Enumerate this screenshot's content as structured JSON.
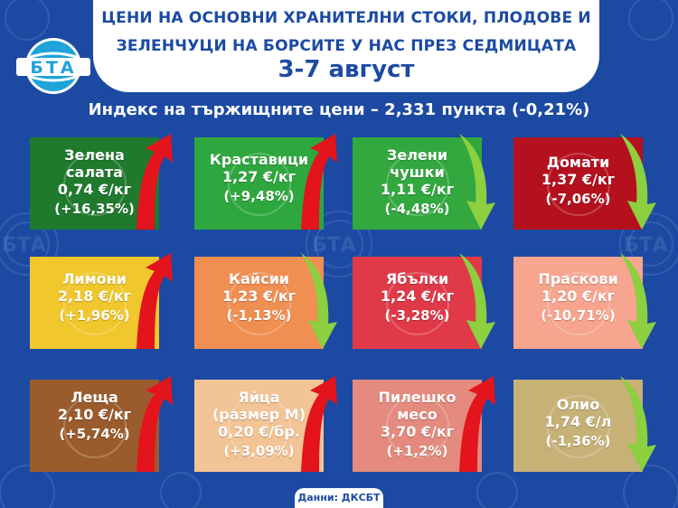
{
  "header": {
    "line1": "ЦЕНИ НА ОСНОВНИ ХРАНИТЕЛНИ СТОКИ, ПЛОДОВЕ И",
    "line2": "ЗЕЛЕНЧУЦИ НА БОРСИТЕ У НАС ПРЕЗ СЕДМИЦАТА",
    "date": "3-7 август"
  },
  "logo": {
    "text": "БТА"
  },
  "index_line": "Индекс на тържищните цени – 2,331 пункта (-0,21%)",
  "products": [
    {
      "name": "Зелена\nсалата",
      "price": "0,74 €/кг",
      "change": "(+16,35%)",
      "direction": "up",
      "color": "#1f7a2e",
      "icon": "lettuce-icon"
    },
    {
      "name": "Краставици",
      "price": "1,27 €/кг",
      "change": "(+9,48%)",
      "direction": "up",
      "color": "#2ea83e",
      "icon": "cucumber-icon"
    },
    {
      "name": "Зелени\nчушки",
      "price": "1,11 €/кг",
      "change": "(-4,48%)",
      "direction": "down",
      "color": "#33a83f",
      "icon": "pepper-icon"
    },
    {
      "name": "Домати",
      "price": "1,37 €/кг",
      "change": "(-7,06%)",
      "direction": "down",
      "color": "#b5101e",
      "icon": "tomato-icon"
    },
    {
      "name": "Лимони",
      "price": "2,18 €/кг",
      "change": "(+1,96%)",
      "direction": "up",
      "color": "#f0c72c",
      "icon": "lemon-icon"
    },
    {
      "name": "Кайсии",
      "price": "1,23 €/кг",
      "change": "(-1,13%)",
      "direction": "down",
      "color": "#f08f52",
      "icon": "apricot-icon"
    },
    {
      "name": "Ябълки",
      "price": "1,24 €/кг",
      "change": "(-3,28%)",
      "direction": "down",
      "color": "#e03a48",
      "icon": "apple-icon"
    },
    {
      "name": "Праскови",
      "price": "1,20 €/кг",
      "change": "(-10,71%)",
      "direction": "down",
      "color": "#f7a58f",
      "icon": "peach-icon"
    },
    {
      "name": "Леща",
      "price": "2,10 €/кг",
      "change": "(+5,74%)",
      "direction": "up",
      "color": "#9a5c2c",
      "icon": "lentils-icon"
    },
    {
      "name": "Яйца\n(размер М)",
      "price": "0,20 €/бр.",
      "change": "(+3,09%)",
      "direction": "up",
      "color": "#f3c495",
      "icon": "eggs-icon"
    },
    {
      "name": "Пилешко\nмесо",
      "price": "3,70 €/кг",
      "change": "(+1,2%)",
      "direction": "up",
      "color": "#e58a7e",
      "icon": "chicken-icon"
    },
    {
      "name": "Олио",
      "price": "1,74 €/л",
      "change": "(-1,36%)",
      "direction": "down",
      "color": "#c7b176",
      "icon": "oil-bottle-icon"
    }
  ],
  "arrow_colors": {
    "up": "#e3141c",
    "down": "#8ccf3f"
  },
  "source": "Данни: ДКСБТ"
}
